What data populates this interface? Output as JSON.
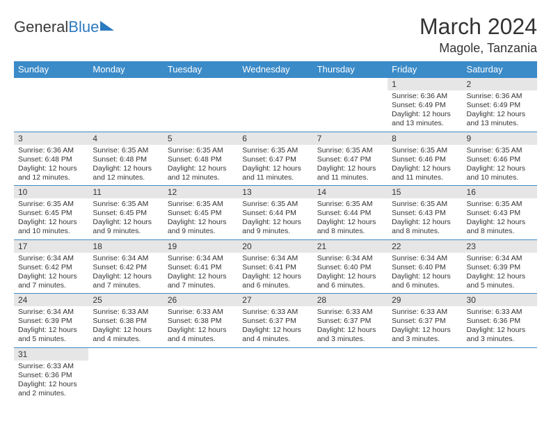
{
  "logo": {
    "text_general": "General",
    "text_blue": "Blue"
  },
  "title": {
    "month": "March 2024",
    "location": "Magole, Tanzania"
  },
  "colors": {
    "header_bg": "#3b8bc8",
    "header_text": "#ffffff",
    "daynum_bg": "#e6e6e6",
    "border": "#3b8bc8",
    "text": "#333333",
    "logo_gray": "#3a3a3a",
    "logo_blue": "#2b7ac0"
  },
  "typography": {
    "month_title_fontsize": 32,
    "location_fontsize": 18,
    "dayheader_fontsize": 13,
    "daynum_fontsize": 12,
    "body_fontsize": 10.5
  },
  "day_headers": [
    "Sunday",
    "Monday",
    "Tuesday",
    "Wednesday",
    "Thursday",
    "Friday",
    "Saturday"
  ],
  "weeks": [
    [
      {
        "num": "",
        "sunrise": "",
        "sunset": "",
        "daylight": ""
      },
      {
        "num": "",
        "sunrise": "",
        "sunset": "",
        "daylight": ""
      },
      {
        "num": "",
        "sunrise": "",
        "sunset": "",
        "daylight": ""
      },
      {
        "num": "",
        "sunrise": "",
        "sunset": "",
        "daylight": ""
      },
      {
        "num": "",
        "sunrise": "",
        "sunset": "",
        "daylight": ""
      },
      {
        "num": "1",
        "sunrise": "Sunrise: 6:36 AM",
        "sunset": "Sunset: 6:49 PM",
        "daylight": "Daylight: 12 hours and 13 minutes."
      },
      {
        "num": "2",
        "sunrise": "Sunrise: 6:36 AM",
        "sunset": "Sunset: 6:49 PM",
        "daylight": "Daylight: 12 hours and 13 minutes."
      }
    ],
    [
      {
        "num": "3",
        "sunrise": "Sunrise: 6:36 AM",
        "sunset": "Sunset: 6:48 PM",
        "daylight": "Daylight: 12 hours and 12 minutes."
      },
      {
        "num": "4",
        "sunrise": "Sunrise: 6:35 AM",
        "sunset": "Sunset: 6:48 PM",
        "daylight": "Daylight: 12 hours and 12 minutes."
      },
      {
        "num": "5",
        "sunrise": "Sunrise: 6:35 AM",
        "sunset": "Sunset: 6:48 PM",
        "daylight": "Daylight: 12 hours and 12 minutes."
      },
      {
        "num": "6",
        "sunrise": "Sunrise: 6:35 AM",
        "sunset": "Sunset: 6:47 PM",
        "daylight": "Daylight: 12 hours and 11 minutes."
      },
      {
        "num": "7",
        "sunrise": "Sunrise: 6:35 AM",
        "sunset": "Sunset: 6:47 PM",
        "daylight": "Daylight: 12 hours and 11 minutes."
      },
      {
        "num": "8",
        "sunrise": "Sunrise: 6:35 AM",
        "sunset": "Sunset: 6:46 PM",
        "daylight": "Daylight: 12 hours and 11 minutes."
      },
      {
        "num": "9",
        "sunrise": "Sunrise: 6:35 AM",
        "sunset": "Sunset: 6:46 PM",
        "daylight": "Daylight: 12 hours and 10 minutes."
      }
    ],
    [
      {
        "num": "10",
        "sunrise": "Sunrise: 6:35 AM",
        "sunset": "Sunset: 6:45 PM",
        "daylight": "Daylight: 12 hours and 10 minutes."
      },
      {
        "num": "11",
        "sunrise": "Sunrise: 6:35 AM",
        "sunset": "Sunset: 6:45 PM",
        "daylight": "Daylight: 12 hours and 9 minutes."
      },
      {
        "num": "12",
        "sunrise": "Sunrise: 6:35 AM",
        "sunset": "Sunset: 6:45 PM",
        "daylight": "Daylight: 12 hours and 9 minutes."
      },
      {
        "num": "13",
        "sunrise": "Sunrise: 6:35 AM",
        "sunset": "Sunset: 6:44 PM",
        "daylight": "Daylight: 12 hours and 9 minutes."
      },
      {
        "num": "14",
        "sunrise": "Sunrise: 6:35 AM",
        "sunset": "Sunset: 6:44 PM",
        "daylight": "Daylight: 12 hours and 8 minutes."
      },
      {
        "num": "15",
        "sunrise": "Sunrise: 6:35 AM",
        "sunset": "Sunset: 6:43 PM",
        "daylight": "Daylight: 12 hours and 8 minutes."
      },
      {
        "num": "16",
        "sunrise": "Sunrise: 6:35 AM",
        "sunset": "Sunset: 6:43 PM",
        "daylight": "Daylight: 12 hours and 8 minutes."
      }
    ],
    [
      {
        "num": "17",
        "sunrise": "Sunrise: 6:34 AM",
        "sunset": "Sunset: 6:42 PM",
        "daylight": "Daylight: 12 hours and 7 minutes."
      },
      {
        "num": "18",
        "sunrise": "Sunrise: 6:34 AM",
        "sunset": "Sunset: 6:42 PM",
        "daylight": "Daylight: 12 hours and 7 minutes."
      },
      {
        "num": "19",
        "sunrise": "Sunrise: 6:34 AM",
        "sunset": "Sunset: 6:41 PM",
        "daylight": "Daylight: 12 hours and 7 minutes."
      },
      {
        "num": "20",
        "sunrise": "Sunrise: 6:34 AM",
        "sunset": "Sunset: 6:41 PM",
        "daylight": "Daylight: 12 hours and 6 minutes."
      },
      {
        "num": "21",
        "sunrise": "Sunrise: 6:34 AM",
        "sunset": "Sunset: 6:40 PM",
        "daylight": "Daylight: 12 hours and 6 minutes."
      },
      {
        "num": "22",
        "sunrise": "Sunrise: 6:34 AM",
        "sunset": "Sunset: 6:40 PM",
        "daylight": "Daylight: 12 hours and 6 minutes."
      },
      {
        "num": "23",
        "sunrise": "Sunrise: 6:34 AM",
        "sunset": "Sunset: 6:39 PM",
        "daylight": "Daylight: 12 hours and 5 minutes."
      }
    ],
    [
      {
        "num": "24",
        "sunrise": "Sunrise: 6:34 AM",
        "sunset": "Sunset: 6:39 PM",
        "daylight": "Daylight: 12 hours and 5 minutes."
      },
      {
        "num": "25",
        "sunrise": "Sunrise: 6:33 AM",
        "sunset": "Sunset: 6:38 PM",
        "daylight": "Daylight: 12 hours and 4 minutes."
      },
      {
        "num": "26",
        "sunrise": "Sunrise: 6:33 AM",
        "sunset": "Sunset: 6:38 PM",
        "daylight": "Daylight: 12 hours and 4 minutes."
      },
      {
        "num": "27",
        "sunrise": "Sunrise: 6:33 AM",
        "sunset": "Sunset: 6:37 PM",
        "daylight": "Daylight: 12 hours and 4 minutes."
      },
      {
        "num": "28",
        "sunrise": "Sunrise: 6:33 AM",
        "sunset": "Sunset: 6:37 PM",
        "daylight": "Daylight: 12 hours and 3 minutes."
      },
      {
        "num": "29",
        "sunrise": "Sunrise: 6:33 AM",
        "sunset": "Sunset: 6:37 PM",
        "daylight": "Daylight: 12 hours and 3 minutes."
      },
      {
        "num": "30",
        "sunrise": "Sunrise: 6:33 AM",
        "sunset": "Sunset: 6:36 PM",
        "daylight": "Daylight: 12 hours and 3 minutes."
      }
    ],
    [
      {
        "num": "31",
        "sunrise": "Sunrise: 6:33 AM",
        "sunset": "Sunset: 6:36 PM",
        "daylight": "Daylight: 12 hours and 2 minutes."
      },
      {
        "num": "",
        "sunrise": "",
        "sunset": "",
        "daylight": ""
      },
      {
        "num": "",
        "sunrise": "",
        "sunset": "",
        "daylight": ""
      },
      {
        "num": "",
        "sunrise": "",
        "sunset": "",
        "daylight": ""
      },
      {
        "num": "",
        "sunrise": "",
        "sunset": "",
        "daylight": ""
      },
      {
        "num": "",
        "sunrise": "",
        "sunset": "",
        "daylight": ""
      },
      {
        "num": "",
        "sunrise": "",
        "sunset": "",
        "daylight": ""
      }
    ]
  ]
}
